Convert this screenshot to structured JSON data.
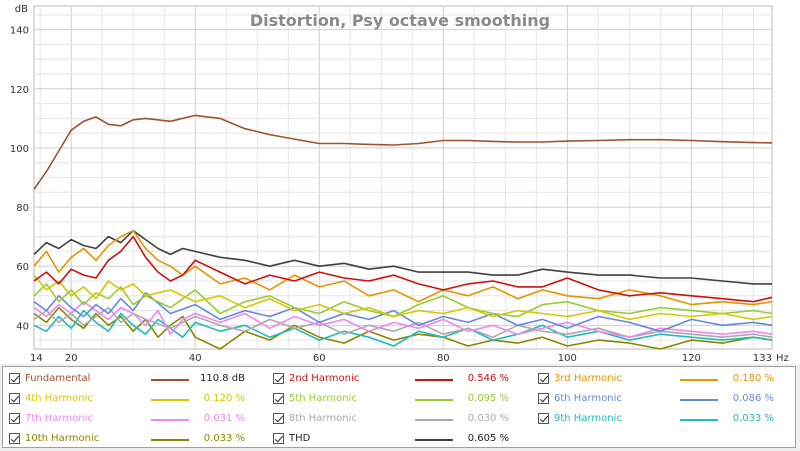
{
  "chart_data": {
    "type": "line",
    "title": "Distortion, Psy octave smoothing",
    "ylabel": "dB",
    "xlabel": "Hz",
    "xlim": [
      14,
      133
    ],
    "ylim": [
      32,
      148
    ],
    "xticks": [
      "14",
      "20",
      "40",
      "60",
      "80",
      "100",
      "120",
      "133"
    ],
    "yticks": [
      "40",
      "60",
      "80",
      "100",
      "120",
      "140"
    ],
    "grid": true,
    "series": [
      {
        "name": "Fundamental",
        "color": "#a0522d",
        "value": "110.8 dB",
        "x": [
          14,
          16,
          18,
          20,
          22,
          24,
          26,
          28,
          30,
          32,
          36,
          40,
          44,
          48,
          52,
          56,
          60,
          64,
          68,
          72,
          76,
          80,
          84,
          88,
          92,
          96,
          100,
          105,
          110,
          115,
          120,
          125,
          130,
          133
        ],
        "y": [
          86,
          92,
          99,
          106,
          109,
          110.5,
          108,
          107.5,
          109.5,
          110,
          109,
          111,
          110,
          106.5,
          104.5,
          103,
          101.5,
          101.5,
          101.2,
          101,
          101.5,
          102.5,
          102.5,
          102.2,
          102,
          102,
          102.3,
          102.5,
          102.8,
          102.8,
          102.5,
          102.1,
          101.8,
          101.7
        ]
      },
      {
        "name": "2nd Harmonic",
        "color": "#cc1111",
        "value": "0.546 %",
        "x": [
          14,
          16,
          18,
          20,
          22,
          24,
          26,
          28,
          30,
          32,
          34,
          36,
          38,
          40,
          44,
          48,
          52,
          56,
          60,
          64,
          68,
          72,
          76,
          80,
          84,
          88,
          92,
          96,
          100,
          105,
          110,
          115,
          120,
          125,
          130,
          133
        ],
        "y": [
          55,
          58,
          54,
          59,
          57,
          56,
          62,
          65,
          70,
          63,
          58,
          55,
          57,
          62,
          58,
          54,
          57,
          55,
          58,
          56,
          55,
          57,
          54,
          52,
          54,
          55,
          53,
          53,
          56,
          52,
          50,
          51,
          50,
          49,
          48,
          49.5
        ]
      },
      {
        "name": "3rd Harmonic",
        "color": "#e69500",
        "value": "0.180 %",
        "x": [
          14,
          16,
          18,
          20,
          22,
          24,
          26,
          28,
          30,
          32,
          34,
          36,
          38,
          40,
          44,
          48,
          52,
          56,
          60,
          64,
          68,
          72,
          76,
          80,
          84,
          88,
          92,
          96,
          100,
          105,
          110,
          115,
          120,
          125,
          130,
          133
        ],
        "y": [
          60,
          65,
          58,
          63,
          66,
          62,
          67,
          70,
          72,
          66,
          62,
          60,
          57,
          60,
          54,
          56,
          52,
          57,
          53,
          55,
          50,
          52,
          48,
          52,
          50,
          53,
          49,
          52,
          50,
          49,
          52,
          50,
          47,
          48,
          47,
          48
        ]
      },
      {
        "name": "4th Harmonic",
        "color": "#d4c800",
        "value": "0.120 %",
        "x": [
          14,
          16,
          18,
          20,
          22,
          24,
          26,
          28,
          30,
          32,
          36,
          40,
          44,
          48,
          52,
          56,
          60,
          64,
          68,
          72,
          76,
          80,
          84,
          88,
          92,
          96,
          100,
          105,
          110,
          115,
          120,
          125,
          130,
          133
        ],
        "y": [
          57,
          52,
          55,
          50,
          53,
          49,
          55,
          52,
          54,
          50,
          52,
          48,
          50,
          46,
          49,
          45,
          47,
          44,
          46,
          43,
          45,
          44,
          46,
          43,
          45,
          44,
          43,
          45,
          42,
          44,
          43,
          44,
          42,
          43
        ]
      },
      {
        "name": "5th Harmonic",
        "color": "#99cc33",
        "value": "0.095 %",
        "x": [
          14,
          16,
          18,
          20,
          22,
          24,
          26,
          28,
          30,
          32,
          36,
          40,
          44,
          48,
          52,
          56,
          60,
          64,
          68,
          72,
          76,
          80,
          84,
          88,
          92,
          96,
          100,
          105,
          110,
          115,
          120,
          125,
          130,
          133
        ],
        "y": [
          50,
          54,
          48,
          52,
          47,
          51,
          49,
          53,
          47,
          50,
          46,
          52,
          44,
          48,
          50,
          46,
          44,
          48,
          45,
          43,
          47,
          50,
          46,
          44,
          43,
          47,
          48,
          45,
          44,
          46,
          45,
          44,
          45,
          44
        ]
      },
      {
        "name": "6th Harmonic",
        "color": "#6688dd",
        "value": "0.086 %",
        "x": [
          14,
          16,
          18,
          20,
          22,
          24,
          26,
          28,
          30,
          32,
          36,
          40,
          44,
          48,
          52,
          56,
          60,
          64,
          68,
          72,
          76,
          80,
          84,
          88,
          92,
          96,
          100,
          105,
          110,
          115,
          120,
          125,
          130,
          133
        ],
        "y": [
          48,
          45,
          50,
          46,
          43,
          47,
          44,
          49,
          45,
          51,
          44,
          47,
          42,
          45,
          43,
          46,
          41,
          44,
          42,
          45,
          40,
          43,
          41,
          44,
          40,
          42,
          39,
          43,
          41,
          38,
          42,
          40,
          41,
          40
        ]
      },
      {
        "name": "7th Harmonic",
        "color": "#ee88ee",
        "value": "0.031 %",
        "x": [
          14,
          16,
          18,
          20,
          22,
          24,
          26,
          28,
          30,
          32,
          34,
          36,
          38,
          40,
          44,
          48,
          52,
          56,
          60,
          64,
          68,
          72,
          76,
          80,
          84,
          88,
          92,
          96,
          100,
          105,
          110,
          115,
          120,
          125,
          130,
          133
        ],
        "y": [
          46,
          43,
          47,
          44,
          48,
          45,
          42,
          46,
          44,
          40,
          45,
          37,
          42,
          44,
          41,
          44,
          39,
          43,
          40,
          42,
          38,
          41,
          39,
          42,
          38,
          40,
          37,
          39,
          41,
          38,
          36,
          39,
          38,
          37,
          38,
          37
        ]
      },
      {
        "name": "8th Harmonic",
        "color": "#aaaaaa",
        "value": "0.030 %",
        "x": [
          14,
          16,
          18,
          20,
          22,
          24,
          26,
          28,
          30,
          32,
          36,
          40,
          44,
          48,
          52,
          56,
          60,
          64,
          68,
          72,
          76,
          80,
          84,
          88,
          92,
          96,
          100,
          105,
          110,
          115,
          120,
          125,
          130,
          133
        ],
        "y": [
          42,
          45,
          41,
          44,
          40,
          43,
          46,
          41,
          44,
          42,
          39,
          43,
          40,
          38,
          42,
          39,
          41,
          37,
          40,
          38,
          41,
          37,
          39,
          36,
          40,
          38,
          37,
          39,
          36,
          38,
          37,
          36,
          37,
          36
        ]
      },
      {
        "name": "9th Harmonic",
        "color": "#22bbbb",
        "value": "0.033 %",
        "x": [
          14,
          16,
          18,
          20,
          22,
          24,
          26,
          28,
          30,
          32,
          34,
          36,
          38,
          40,
          44,
          48,
          52,
          56,
          60,
          64,
          68,
          72,
          76,
          80,
          84,
          88,
          92,
          96,
          100,
          105,
          110,
          115,
          120,
          125,
          130,
          133
        ],
        "y": [
          40,
          38,
          43,
          39,
          45,
          41,
          38,
          44,
          40,
          37,
          42,
          39,
          36,
          41,
          38,
          40,
          36,
          39,
          35,
          38,
          36,
          33,
          38,
          36,
          39,
          35,
          37,
          40,
          36,
          38,
          35,
          37,
          36,
          35,
          36,
          35
        ]
      },
      {
        "name": "10th Harmonic",
        "color": "#888800",
        "value": "0.033 %",
        "x": [
          14,
          16,
          18,
          20,
          22,
          24,
          26,
          28,
          30,
          32,
          34,
          36,
          38,
          40,
          44,
          48,
          52,
          56,
          60,
          64,
          68,
          72,
          76,
          80,
          84,
          88,
          92,
          96,
          100,
          105,
          110,
          115,
          120,
          125,
          130,
          133
        ],
        "y": [
          44,
          41,
          46,
          42,
          39,
          44,
          40,
          43,
          38,
          42,
          36,
          40,
          43,
          36,
          32,
          38,
          35,
          40,
          36,
          34,
          38,
          35,
          37,
          36,
          33,
          35,
          34,
          36,
          33,
          35,
          34,
          32,
          35,
          34,
          36,
          35
        ]
      },
      {
        "name": "THD",
        "color": "#404040",
        "value": "0.605 %",
        "x": [
          14,
          16,
          18,
          20,
          22,
          24,
          26,
          28,
          30,
          32,
          34,
          36,
          38,
          40,
          44,
          48,
          52,
          56,
          60,
          64,
          68,
          72,
          76,
          80,
          84,
          88,
          92,
          96,
          100,
          105,
          110,
          115,
          120,
          125,
          130,
          133
        ],
        "y": [
          64,
          68,
          66,
          69,
          67,
          66,
          70,
          68,
          72,
          69,
          66,
          64,
          66,
          65,
          63,
          62,
          60,
          62,
          60,
          61,
          59,
          60,
          58,
          58,
          58,
          57,
          57,
          59,
          58,
          57,
          57,
          56,
          56,
          55,
          54,
          54
        ]
      }
    ]
  },
  "legend": {
    "items": [
      {
        "label": "Fundamental",
        "value": "110.8 dB",
        "color": "#a0522d"
      },
      {
        "label": "2nd Harmonic",
        "value": "0.546 %",
        "color": "#cc1111"
      },
      {
        "label": "3rd Harmonic",
        "value": "0.180 %",
        "color": "#e69500"
      },
      {
        "label": "4th Harmonic",
        "value": "0.120 %",
        "color": "#d4c800"
      },
      {
        "label": "5th Harmonic",
        "value": "0.095 %",
        "color": "#99cc33"
      },
      {
        "label": "6th Harmonic",
        "value": "0.086 %",
        "color": "#6688dd"
      },
      {
        "label": "7th Harmonic",
        "value": "0.031 %",
        "color": "#ee88ee"
      },
      {
        "label": "8th Harmonic",
        "value": "0.030 %",
        "color": "#aaaaaa"
      },
      {
        "label": "9th Harmonic",
        "value": "0.033 %",
        "color": "#22bbbb"
      },
      {
        "label": "10th Harmonic",
        "value": "0.033 %",
        "color": "#888800"
      },
      {
        "label": "THD",
        "value": "0.605 %",
        "color": "#404040"
      }
    ]
  }
}
